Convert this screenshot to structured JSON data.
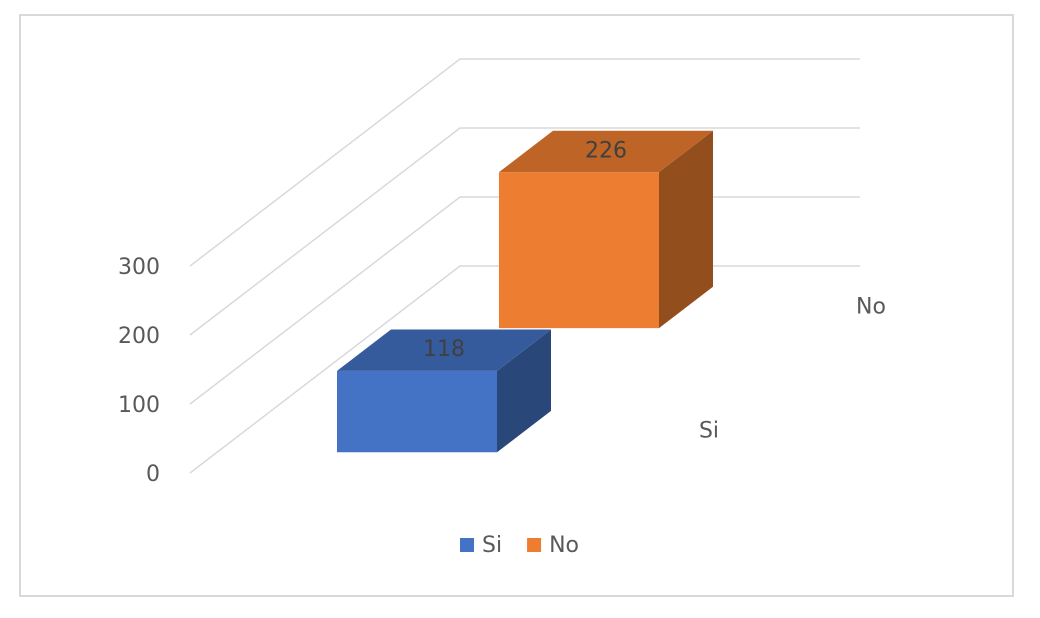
{
  "chart_data": {
    "type": "bar3d",
    "categories": [
      null
    ],
    "series": [
      {
        "name": "Si",
        "color": "#4472c4",
        "values": [
          118
        ]
      },
      {
        "name": "No",
        "color": "#ed7d31",
        "values": [
          226
        ]
      }
    ],
    "ylim": [
      0,
      300
    ],
    "yticks": [
      0,
      100,
      200,
      300
    ],
    "grid": true,
    "legend": "bottom"
  }
}
